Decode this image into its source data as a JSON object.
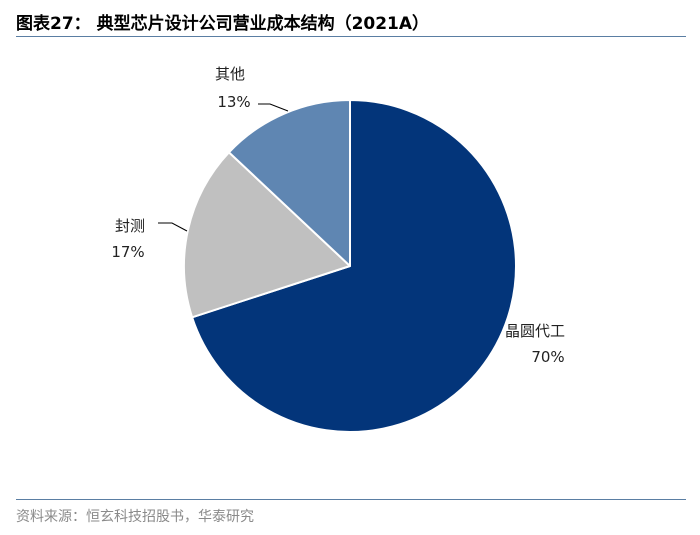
{
  "header": {
    "title": "图表27：  典型芯片设计公司营业成本结构（2021A）"
  },
  "footer": {
    "source": "资料来源：恒玄科技招股书，华泰研究"
  },
  "colors": {
    "rule": "#5a7ea3",
    "label": "#222222",
    "leader": "#000000"
  },
  "chart_data": {
    "type": "pie",
    "title": "典型芯片设计公司营业成本结构（2021A）",
    "start_angle_deg": 0,
    "direction": "clockwise",
    "slices": [
      {
        "label": "晶圆代工",
        "value": 70,
        "display": "70%",
        "color": "#03357a"
      },
      {
        "label": "封测",
        "value": 17,
        "display": "17%",
        "color": "#c0c0c0"
      },
      {
        "label": "其他",
        "value": 13,
        "display": "13%",
        "color": "#5f86b2"
      }
    ]
  }
}
